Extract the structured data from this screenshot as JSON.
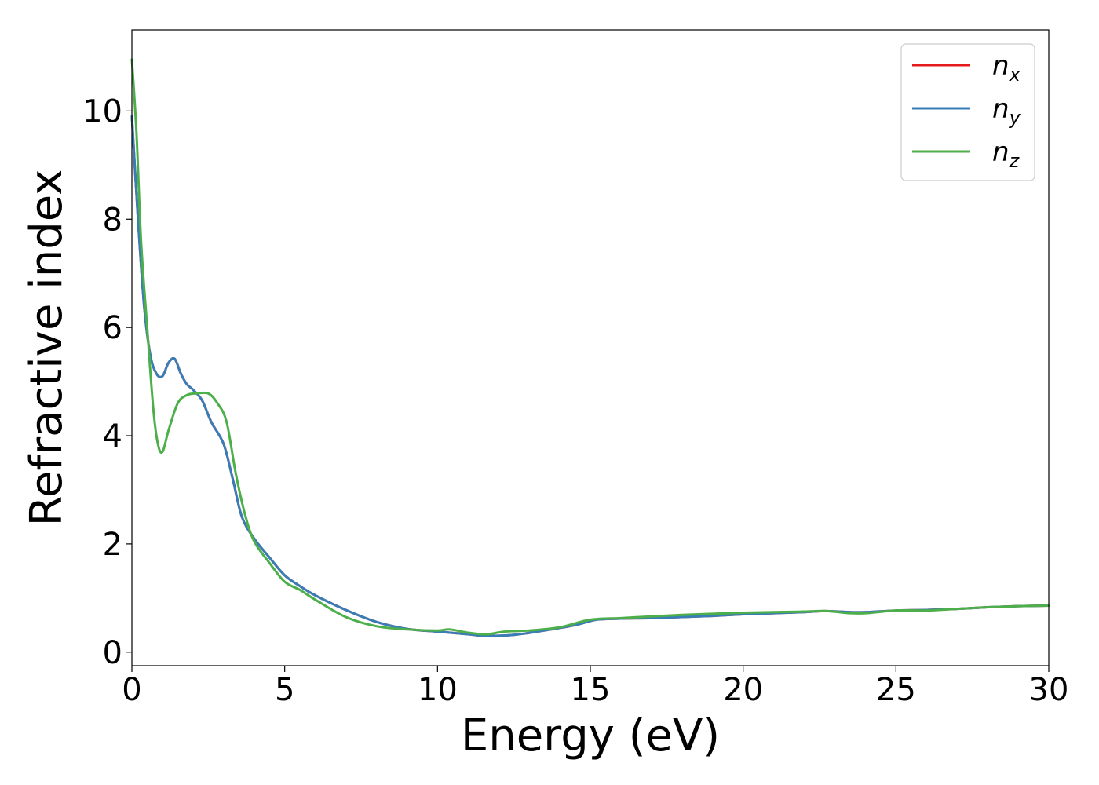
{
  "chart_data": {
    "type": "line",
    "xlabel": "Energy (eV)",
    "ylabel": "Refractive index",
    "xlim": [
      0,
      30
    ],
    "ylim": [
      -0.25,
      11.5
    ],
    "xticks": [
      0,
      5,
      10,
      15,
      20,
      25,
      30
    ],
    "yticks": [
      0,
      2,
      4,
      6,
      8,
      10
    ],
    "grid": false,
    "legend_position": "top-right",
    "series": [
      {
        "name": "n",
        "subscript": "x",
        "color": "#e41a1c",
        "x": [
          0,
          0.2,
          0.4,
          0.6,
          0.8,
          1.0,
          1.2,
          1.4,
          1.6,
          1.8,
          2.0,
          2.3,
          2.6,
          3.0,
          3.3,
          3.6,
          4.0,
          4.5,
          5.0,
          5.5,
          6.0,
          7.0,
          8.0,
          9.0,
          10.0,
          11.0,
          11.6,
          12.5,
          13.5,
          14.5,
          15.2,
          16.0,
          17.0,
          18.0,
          19.0,
          20.0,
          21.0,
          22.0,
          22.7,
          23.5,
          24.0,
          25.0,
          26.0,
          27.0,
          28.0,
          29.0,
          30.0
        ],
        "y": [
          9.9,
          8.0,
          6.4,
          5.5,
          5.15,
          5.1,
          5.35,
          5.42,
          5.15,
          4.95,
          4.85,
          4.65,
          4.25,
          3.85,
          3.2,
          2.5,
          2.1,
          1.75,
          1.42,
          1.22,
          1.05,
          0.78,
          0.56,
          0.43,
          0.38,
          0.33,
          0.3,
          0.32,
          0.4,
          0.5,
          0.6,
          0.62,
          0.63,
          0.65,
          0.67,
          0.7,
          0.72,
          0.74,
          0.76,
          0.74,
          0.74,
          0.77,
          0.78,
          0.8,
          0.83,
          0.85,
          0.86
        ]
      },
      {
        "name": "n",
        "subscript": "y",
        "color": "#377eb8",
        "x": [
          0,
          0.2,
          0.4,
          0.6,
          0.8,
          1.0,
          1.2,
          1.4,
          1.6,
          1.8,
          2.0,
          2.3,
          2.6,
          3.0,
          3.3,
          3.6,
          4.0,
          4.5,
          5.0,
          5.5,
          6.0,
          7.0,
          8.0,
          9.0,
          10.0,
          11.0,
          11.6,
          12.5,
          13.5,
          14.5,
          15.2,
          16.0,
          17.0,
          18.0,
          19.0,
          20.0,
          21.0,
          22.0,
          22.7,
          23.5,
          24.0,
          25.0,
          26.0,
          27.0,
          28.0,
          29.0,
          30.0
        ],
        "y": [
          9.9,
          8.0,
          6.4,
          5.5,
          5.15,
          5.1,
          5.35,
          5.42,
          5.15,
          4.95,
          4.85,
          4.65,
          4.25,
          3.85,
          3.2,
          2.5,
          2.1,
          1.75,
          1.42,
          1.22,
          1.05,
          0.78,
          0.56,
          0.43,
          0.38,
          0.33,
          0.3,
          0.32,
          0.4,
          0.5,
          0.6,
          0.62,
          0.63,
          0.65,
          0.67,
          0.7,
          0.72,
          0.74,
          0.76,
          0.74,
          0.74,
          0.77,
          0.78,
          0.8,
          0.83,
          0.85,
          0.86
        ]
      },
      {
        "name": "n",
        "subscript": "z",
        "color": "#4daf4a",
        "x": [
          0,
          0.15,
          0.3,
          0.5,
          0.7,
          0.85,
          1.0,
          1.2,
          1.5,
          1.8,
          2.1,
          2.5,
          2.8,
          3.1,
          3.4,
          3.7,
          4.0,
          4.5,
          5.0,
          5.5,
          6.0,
          7.0,
          8.0,
          9.0,
          10.0,
          10.4,
          11.0,
          11.6,
          12.2,
          13.0,
          14.0,
          15.0,
          16.0,
          17.0,
          18.0,
          19.0,
          20.0,
          21.0,
          22.0,
          22.7,
          23.5,
          24.0,
          25.0,
          26.0,
          27.0,
          28.0,
          29.0,
          30.0
        ],
        "y": [
          10.95,
          9.6,
          7.6,
          6.0,
          4.5,
          3.85,
          3.7,
          4.1,
          4.6,
          4.75,
          4.78,
          4.78,
          4.6,
          4.25,
          3.3,
          2.55,
          2.05,
          1.65,
          1.3,
          1.15,
          0.97,
          0.65,
          0.48,
          0.42,
          0.4,
          0.42,
          0.36,
          0.33,
          0.38,
          0.4,
          0.46,
          0.6,
          0.63,
          0.66,
          0.69,
          0.71,
          0.73,
          0.74,
          0.75,
          0.76,
          0.72,
          0.72,
          0.77,
          0.77,
          0.8,
          0.83,
          0.85,
          0.86
        ]
      }
    ]
  }
}
